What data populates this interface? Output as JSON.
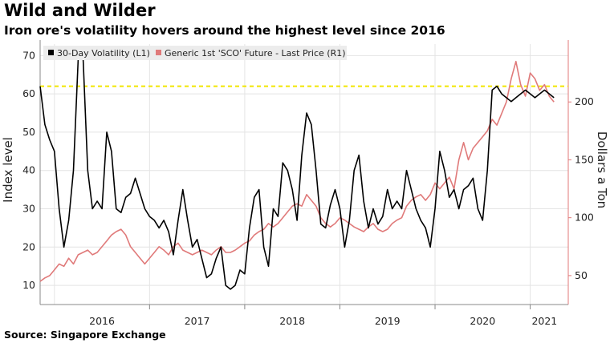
{
  "title": "Wild and Wilder",
  "subtitle": "Iron ore's volatility hovers around the highest level since 2016",
  "source": "Source: Singapore Exchange",
  "chart_data": {
    "type": "line",
    "xlabel": "",
    "ylabel_left": "Index level",
    "ylabel_right": "Dollars a Ton",
    "x_ticks": [
      "2016",
      "2017",
      "2018",
      "2019",
      "2020",
      "2021"
    ],
    "x_range": [
      2015.85,
      2021.4
    ],
    "ylim_left": [
      5,
      73
    ],
    "ylim_right": [
      25,
      250
    ],
    "yticks_left": [
      10,
      20,
      30,
      40,
      50,
      60,
      70
    ],
    "yticks_right": [
      50,
      100,
      150,
      200
    ],
    "reference_line": {
      "value": 62,
      "axis": "left",
      "style": "dashed",
      "color": "#f2e600"
    },
    "grid": true,
    "legend_position": "top-left",
    "series": [
      {
        "name": "30-Day Volatility (L1)",
        "axis": "left",
        "color": "#000000",
        "x": [
          2015.85,
          2015.9,
          2015.95,
          2016.0,
          2016.05,
          2016.1,
          2016.15,
          2016.2,
          2016.25,
          2016.3,
          2016.35,
          2016.4,
          2016.45,
          2016.5,
          2016.55,
          2016.6,
          2016.65,
          2016.7,
          2016.75,
          2016.8,
          2016.85,
          2016.9,
          2016.95,
          2017.0,
          2017.05,
          2017.1,
          2017.15,
          2017.2,
          2017.25,
          2017.3,
          2017.35,
          2017.4,
          2017.45,
          2017.5,
          2017.55,
          2017.6,
          2017.65,
          2017.7,
          2017.75,
          2017.8,
          2017.85,
          2017.9,
          2017.95,
          2018.0,
          2018.05,
          2018.1,
          2018.15,
          2018.2,
          2018.25,
          2018.3,
          2018.35,
          2018.4,
          2018.45,
          2018.5,
          2018.55,
          2018.6,
          2018.65,
          2018.7,
          2018.75,
          2018.8,
          2018.85,
          2018.9,
          2018.95,
          2019.0,
          2019.05,
          2019.1,
          2019.15,
          2019.2,
          2019.25,
          2019.3,
          2019.35,
          2019.4,
          2019.45,
          2019.5,
          2019.55,
          2019.6,
          2019.65,
          2019.7,
          2019.75,
          2019.8,
          2019.85,
          2019.9,
          2019.95,
          2020.0,
          2020.05,
          2020.1,
          2020.15,
          2020.2,
          2020.25,
          2020.3,
          2020.35,
          2020.4,
          2020.45,
          2020.5,
          2020.55,
          2020.6,
          2020.65,
          2020.7,
          2020.75,
          2020.8,
          2020.85,
          2020.9,
          2020.95,
          2021.0,
          2021.05,
          2021.1,
          2021.15,
          2021.2,
          2021.25
        ],
        "values": [
          62,
          52,
          48,
          45,
          30,
          20,
          27,
          40,
          69,
          70,
          40,
          30,
          32,
          30,
          50,
          45,
          30,
          29,
          33,
          34,
          38,
          34,
          30,
          28,
          27,
          25,
          27,
          24,
          18,
          27,
          35,
          27,
          20,
          22,
          17,
          12,
          13,
          17,
          20,
          10,
          9,
          10,
          14,
          13,
          25,
          33,
          35,
          20,
          15,
          30,
          28,
          42,
          40,
          35,
          27,
          44,
          55,
          52,
          40,
          26,
          25,
          31,
          35,
          30,
          20,
          27,
          40,
          44,
          32,
          25,
          30,
          26,
          28,
          35,
          30,
          32,
          30,
          40,
          35,
          30,
          27,
          25,
          20,
          30,
          45,
          40,
          33,
          35,
          30,
          35,
          36,
          38,
          30,
          27,
          40,
          61,
          62,
          60,
          59,
          58,
          59,
          60,
          61,
          60,
          59,
          60,
          61,
          60,
          59
        ],
        "values_note": ""
      },
      {
        "name": "Generic 1st 'SCO' Future - Last Price (R1)",
        "axis": "right",
        "color": "#e07a7a",
        "x": [
          2015.85,
          2015.9,
          2015.95,
          2016.0,
          2016.05,
          2016.1,
          2016.15,
          2016.2,
          2016.25,
          2016.3,
          2016.35,
          2016.4,
          2016.45,
          2016.5,
          2016.55,
          2016.6,
          2016.65,
          2016.7,
          2016.75,
          2016.8,
          2016.85,
          2016.9,
          2016.95,
          2017.0,
          2017.05,
          2017.1,
          2017.15,
          2017.2,
          2017.25,
          2017.3,
          2017.35,
          2017.4,
          2017.45,
          2017.5,
          2017.55,
          2017.6,
          2017.65,
          2017.7,
          2017.75,
          2017.8,
          2017.85,
          2017.9,
          2017.95,
          2018.0,
          2018.05,
          2018.1,
          2018.15,
          2018.2,
          2018.25,
          2018.3,
          2018.35,
          2018.4,
          2018.45,
          2018.5,
          2018.55,
          2018.6,
          2018.65,
          2018.7,
          2018.75,
          2018.8,
          2018.85,
          2018.9,
          2018.95,
          2019.0,
          2019.05,
          2019.1,
          2019.15,
          2019.2,
          2019.25,
          2019.3,
          2019.35,
          2019.4,
          2019.45,
          2019.5,
          2019.55,
          2019.6,
          2019.65,
          2019.7,
          2019.75,
          2019.8,
          2019.85,
          2019.9,
          2019.95,
          2020.0,
          2020.05,
          2020.1,
          2020.15,
          2020.2,
          2020.25,
          2020.3,
          2020.35,
          2020.4,
          2020.45,
          2020.5,
          2020.55,
          2020.6,
          2020.65,
          2020.7,
          2020.75,
          2020.8,
          2020.85,
          2020.9,
          2020.95,
          2021.0,
          2021.05,
          2021.1,
          2021.15,
          2021.2,
          2021.25
        ],
        "values": [
          45,
          48,
          50,
          55,
          60,
          58,
          65,
          60,
          68,
          70,
          72,
          68,
          70,
          75,
          80,
          85,
          88,
          90,
          85,
          75,
          70,
          65,
          60,
          65,
          70,
          75,
          72,
          68,
          75,
          78,
          72,
          70,
          68,
          70,
          72,
          70,
          68,
          72,
          75,
          70,
          70,
          72,
          75,
          78,
          80,
          85,
          88,
          90,
          95,
          92,
          95,
          100,
          105,
          110,
          112,
          110,
          120,
          115,
          110,
          100,
          95,
          92,
          95,
          100,
          98,
          95,
          92,
          90,
          88,
          92,
          95,
          90,
          88,
          90,
          95,
          98,
          100,
          110,
          115,
          118,
          120,
          115,
          120,
          130,
          125,
          130,
          135,
          125,
          150,
          165,
          150,
          160,
          165,
          170,
          175,
          185,
          180,
          190,
          200,
          220,
          235,
          215,
          205,
          225,
          220,
          210,
          215,
          205,
          200
        ],
        "values_note": ""
      }
    ]
  }
}
